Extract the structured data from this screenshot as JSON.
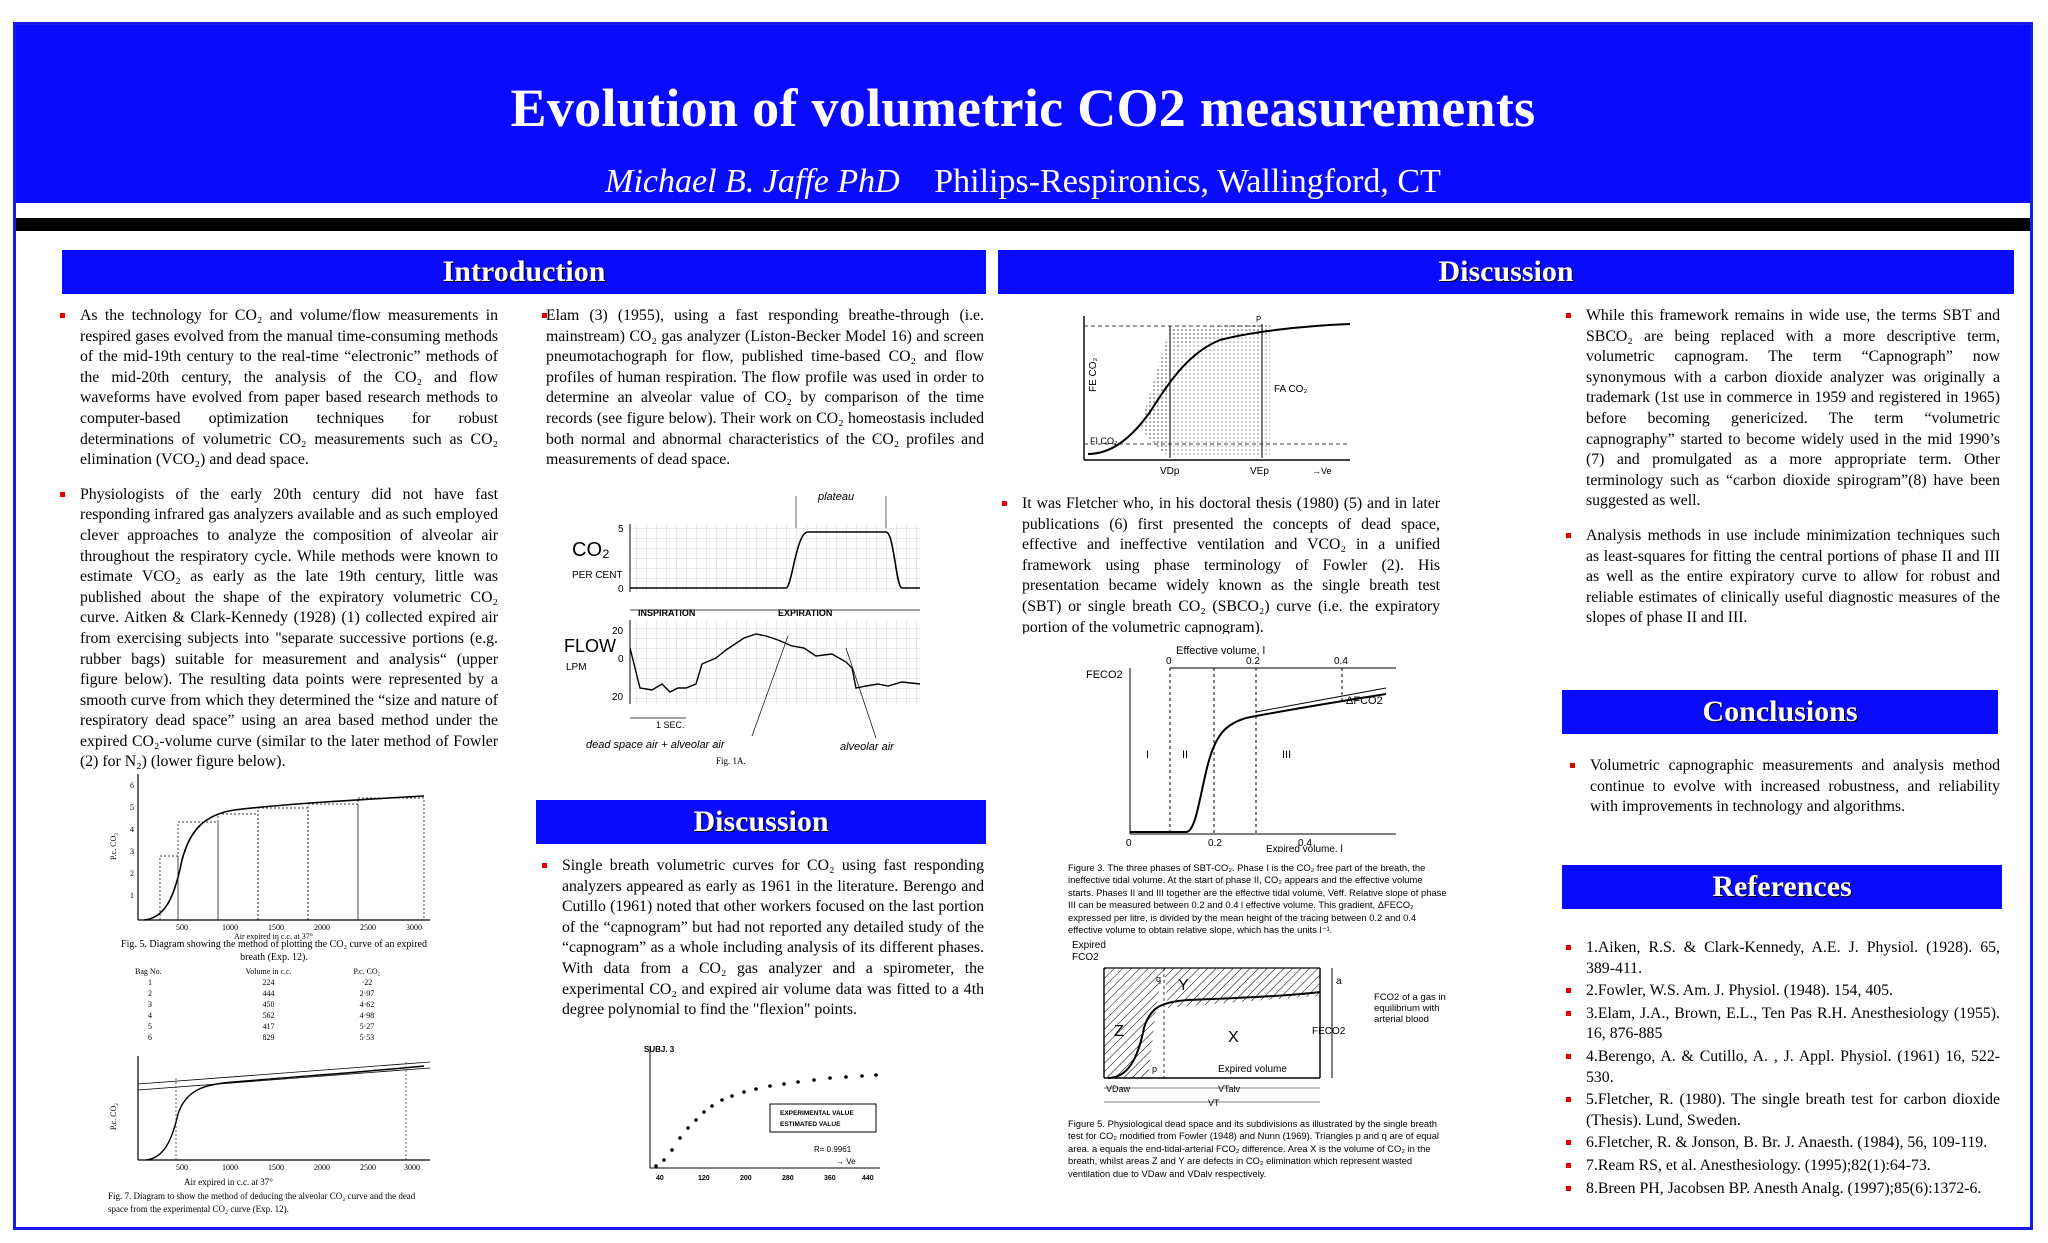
{
  "poster": {
    "title": "Evolution of volumetric CO2 measurements",
    "author": "Michael B. Jaffe PhD",
    "affiliation": "Philips-Respironics, Wallingford, CT"
  },
  "sections": {
    "introduction": "Introduction",
    "discussion_left": "Discussion",
    "discussion_right": "Discussion",
    "conclusions": "Conclusions",
    "references": "References"
  },
  "intro": {
    "p1": "As the technology for CO₂ and volume/flow measurements in respired gases evolved from the manual time-consuming methods of the mid-19th century to the real-time “electronic” methods of the mid-20th century, the analysis of the CO₂ and flow waveforms have evolved from paper based research methods to computer-based optimization techniques for robust determinations of volumetric CO₂ measurements such as CO₂ elimination (VCO₂) and dead space.",
    "p2": "Physiologists of the early 20th century did not have fast responding infrared gas analyzers available and as such employed clever approaches to analyze the composition of alveolar air throughout the respiratory cycle.  While methods were known to estimate VCO₂ as early as the late 19th century, little was published about the shape of the expiratory volumetric CO₂ curve.  Aitken & Clark-Kennedy (1928) (1) collected expired air from exercising subjects into \"separate successive portions (e.g. rubber bags) suitable for measurement and analysis“ (upper figure below). The resulting data points were represented by a smooth curve from which they determined the “size and nature of respiratory dead space” using an area based method under the expired CO₂-volume curve (similar to the later method of Fowler (2) for N₂)  (lower figure below).",
    "p3": "Elam (3) (1955), using a fast responding breathe-through (i.e. mainstream) CO₂ gas analyzer (Liston-Becker Model 16) and screen pneumotachograph for flow, published time-based CO₂ and flow profiles of human respiration.  The flow profile was used in order to determine an alveolar value of CO₂ by comparison of the time records (see figure below).   Their work on CO₂ homeostasis included both normal and abnormal characteristics of the CO₂ profiles and measurements of dead space."
  },
  "discussion_left": {
    "p1": "Single breath volumetric curves for CO₂ using fast responding analyzers appeared as early as 1961 in the literature.  Berengo and Cutillo (1961) noted that other workers focused on the last portion of the “capnogram” but had not reported any detailed study of the “capnogram” as a whole including analysis of its different phases. With data from a CO₂ gas analyzer and a spirometer, the experimental CO₂ and expired air volume data was fitted to a 4th degree polynomial to find the \"flexion\" points."
  },
  "discussion_right": {
    "p1": "It was Fletcher who, in his doctoral thesis (1980) (5) and in later publications (6) first presented the concepts of dead space, effective and ineffective ventilation and VCO₂ in a unified framework using phase terminology of Fowler (2).  His presentation became widely known as the single breath test (SBT) or single breath CO₂ (SBCO₂) curve (i.e. the expiratory portion of the volumetric capnogram).",
    "p2": "While this framework remains in wide use, the terms SBT and SBCO₂ are being replaced with a more descriptive term, volumetric capnogram.    The term “Capnograph” now synonymous with a carbon dioxide analyzer was originally a trademark (1st use in commerce in 1959 and registered in 1965) before becoming genericized.  The term “volumetric capnography” started to become widely used in the mid 1990’s (7) and promulgated as a more appropriate term.  Other terminology such as “carbon dioxide spirogram”(8) have been suggested as well.",
    "p3": "Analysis methods in use include minimization techniques such as least-squares for fitting the central portions of phase II and III as well as the entire expiratory curve to allow for robust and reliable estimates of clinically useful diagnostic measures of the slopes of phase II and III."
  },
  "conclusions": {
    "p1": "Volumetric capnographic measurements and analysis method continue to evolve with increased robustness, and reliability with improvements in technology and algorithms."
  },
  "references": [
    "1.Aiken, R.S. & Clark-Kennedy, A.E. J. Physiol. (1928). 65, 389-411.",
    "2.Fowler, W.S. Am. J. Physiol. (1948). 154, 405.",
    "3.Elam, J.A., Brown, E.L., Ten Pas R.H. Anesthesiology (1955). 16, 876-885",
    "4.Berengo, A. & Cutillo, A. , J. Appl. Physiol. (1961) 16, 522-530.",
    "5.Fletcher, R. (1980). The single breath test for carbon dioxide (Thesis). Lund, Sweden.",
    "6.Fletcher, R. & Jonson, B. Br. J. Anaesth. (1984), 56, 109-119.",
    "7.Ream RS, et al.  Anesthesiology. (1995);82(1):64-73.",
    "8.Breen PH, Jacobsen BP. Anesth Analg. (1997);85(6):1372-6."
  ],
  "figures": {
    "fig5": {
      "xlabel": "Air expired in c.c. at 37°",
      "ylabel": "P.c. CO₂",
      "xticks": [
        "500",
        "1000",
        "1500",
        "2000",
        "2500",
        "3000"
      ],
      "yticks": [
        "1",
        "2",
        "3",
        "4",
        "5",
        "6"
      ],
      "caption": "Fig. 5.  Diagram showing the method of plotting the CO₂ curve of an expired breath (Exp. 12).",
      "table_headers": [
        "Bag No.",
        "Volume in c.c.",
        "P.c. CO₂"
      ],
      "table_rows": [
        [
          "1",
          "224",
          "·22"
        ],
        [
          "2",
          "444",
          "2·97"
        ],
        [
          "3",
          "450",
          "4·62"
        ],
        [
          "4",
          "562",
          "4·98"
        ],
        [
          "5",
          "417",
          "5·27"
        ],
        [
          "6",
          "829",
          "5·53"
        ]
      ]
    },
    "fig7": {
      "xlabel": "Air expired in c.c. at 37°",
      "ylabel": "P.c. CO₂",
      "xticks": [
        "500",
        "1000",
        "1500",
        "2000",
        "2500",
        "3000"
      ],
      "caption": "Fig. 7.  Diagram to show the method of deducing the alveolar CO₂ curve and the dead space from the experimental CO₂ curve (Exp. 12)."
    },
    "fig1a": {
      "plateau": "plateau",
      "co2": "CO₂",
      "percent": "PER CENT",
      "inspiration": "INSPIRATION",
      "expiration": "EXPIRATION",
      "flow": "FLOW",
      "lpm": "LPM",
      "sec": "1 SEC.",
      "dead_space": "dead space air + alveolar air",
      "alveolar": "alveolar air",
      "caption": "Fig. 1A.",
      "co2_ticks": [
        "5",
        "0"
      ],
      "flow_ticks": [
        "20",
        "0",
        "20"
      ]
    },
    "berengo": {
      "subj": "SUBJ. 3",
      "experimental": "EXPERIMENTAL VALUE",
      "estimated": "ESTIMATED VALUE",
      "r": "R= 0.9961",
      "ve": "→ Ve",
      "xticks": [
        "40",
        "120",
        "200",
        "280",
        "360",
        "440"
      ]
    },
    "fowler": {
      "vdp": "VDp",
      "vep": "VEp",
      "ve": "→Ve",
      "fe": "FE CO₂",
      "fi": "FI CO₂",
      "fa": "FA CO₂",
      "p": "P"
    },
    "fig3": {
      "top_label": "Effective volume, l",
      "bottom_label": "Expired volume, l",
      "fe": "FECO2",
      "delta": "ΔFCO2",
      "phases": [
        "I",
        "II",
        "III"
      ],
      "top_ticks": [
        "0",
        "0.2",
        "0.4"
      ],
      "bottom_ticks": [
        "0",
        "0.2",
        "0.4"
      ],
      "caption": "Figure 3. The three phases of SBT-CO₂. Phase I is the CO₂ free part of the breath, the ineffective tidal volume. At the start of phase II, CO₂ appears and the effective volume starts. Phases II and III together are the effective tidal volume, Veff. Relative slope of phase III can be measured between 0.2 and 0.4 l effective volume. This gradient, ΔFECO₂ expressed per litre, is divided by the mean height of the tracing between 0.2 and 0.4 effective volume to obtain relative slope, which has the units l⁻¹."
    },
    "fig5b": {
      "expired": "Expired",
      "fco2": "FCO2",
      "z": "Z",
      "y": "Y",
      "x": "X",
      "a": "a",
      "p": "p",
      "q": "q",
      "fe": "FECO2",
      "right_label": "FCO2 of a gas in equilibrium with arterial blood",
      "expired_volume": "Expired volume",
      "vdaw": "VDaw",
      "vtalv": "VTalv",
      "vt": "VT",
      "caption": "Figure 5. Physiological dead space and its subdivisions as illustrated by the single breath test for CO₂ modified from Fowler (1948) and Nunn (1969). Triangles p and q are of equal area. a equals the end-tidal-arterial FCO₂ difference. Area X is the volume of CO₂ in the breath, whilst areas Z and Y are defects in CO₂ elimination which represent wasted ventilation due to VDaw and VDalv respectively."
    }
  }
}
